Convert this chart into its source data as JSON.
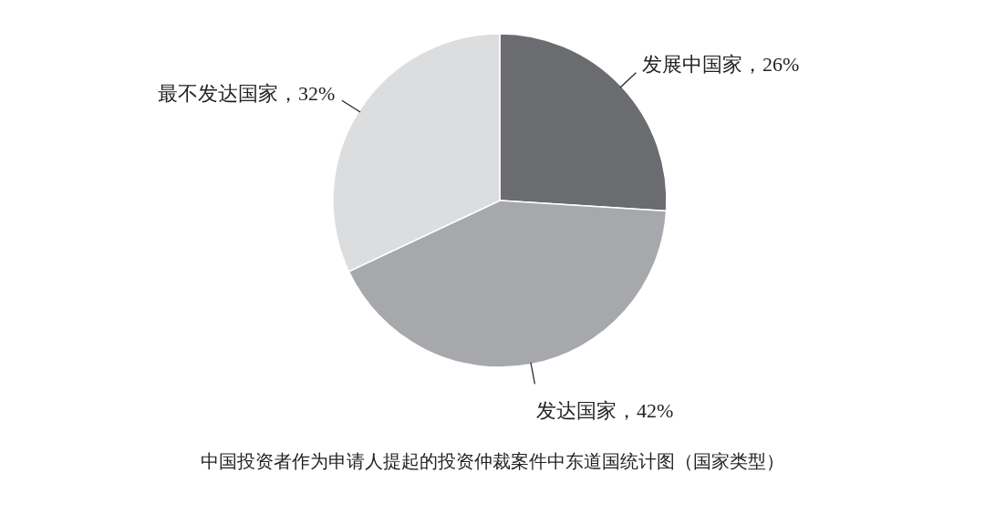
{
  "chart_data": {
    "type": "pie",
    "title": "中国投资者作为申请人提起的投资仲裁案件中东道国统计图（国家类型）",
    "categories": [
      "发展中国家",
      "发达国家",
      "最不发达国家"
    ],
    "values": [
      26,
      42,
      32
    ],
    "colors": [
      "#6b6c70",
      "#a7a8ab",
      "#dcdddf"
    ],
    "value_labels": [
      "，26%",
      "，42%",
      "，32%"
    ]
  }
}
